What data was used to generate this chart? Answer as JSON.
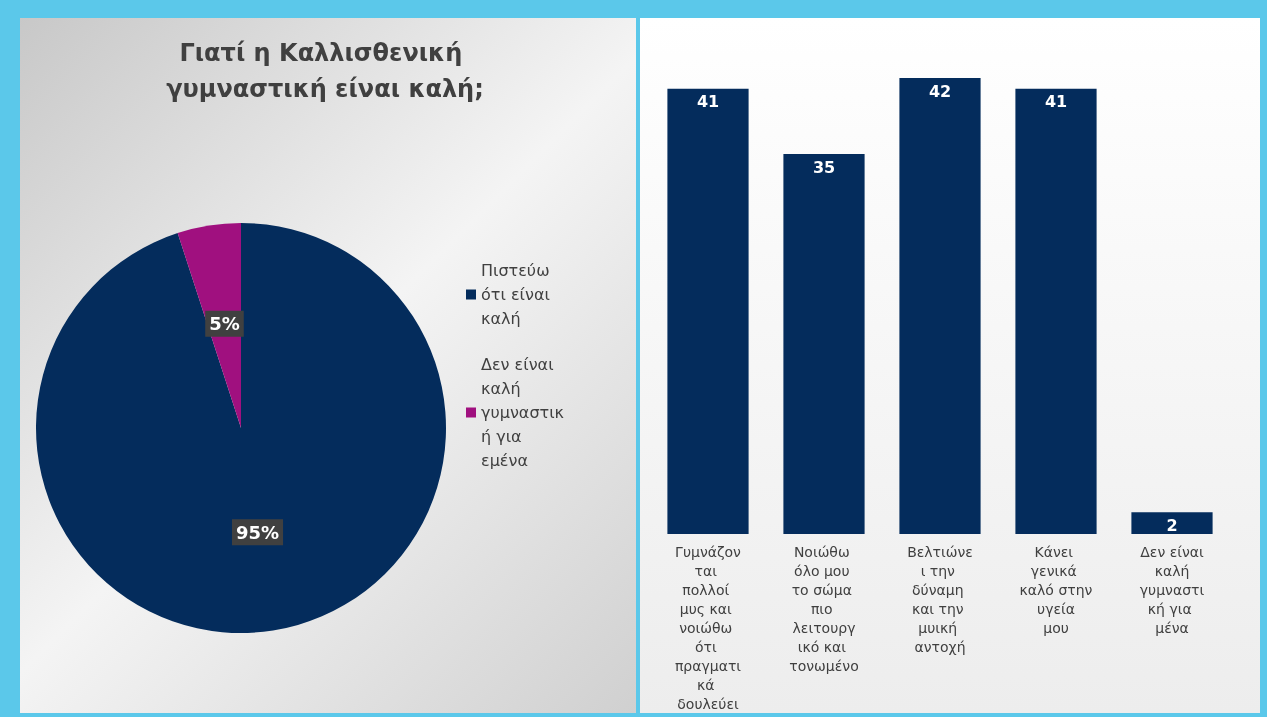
{
  "chart_data": [
    {
      "type": "pie",
      "title": "Γιατί η Καλλισθενική γυμναστική είναι καλή;",
      "categories": [
        "Πιστεύω ότι είναι καλή",
        "Δεν είναι καλή γυμναστική για εμένα"
      ],
      "values": [
        95,
        5
      ],
      "colors": [
        "#042c5c",
        "#a0107f"
      ],
      "value_labels": [
        "95%",
        "5%"
      ],
      "legend": "right"
    },
    {
      "type": "bar",
      "categories": [
        "Γυμνάζονται πολλοί μυς και νοιώθω ότι πραγματικά δουλεύει",
        "Νοιώθω όλο μου το σώμα πιο λειτουργικό και τονωμένο",
        "Βελτιώνει την δύναμη και την μυική αντοχή",
        "Κάνει γενικά καλό στην υγεία μου",
        "Δεν είναι καλή γυμναστική για μένα"
      ],
      "values": [
        41,
        35,
        42,
        41,
        2
      ],
      "color": "#042c5c",
      "data_labels": true
    }
  ]
}
